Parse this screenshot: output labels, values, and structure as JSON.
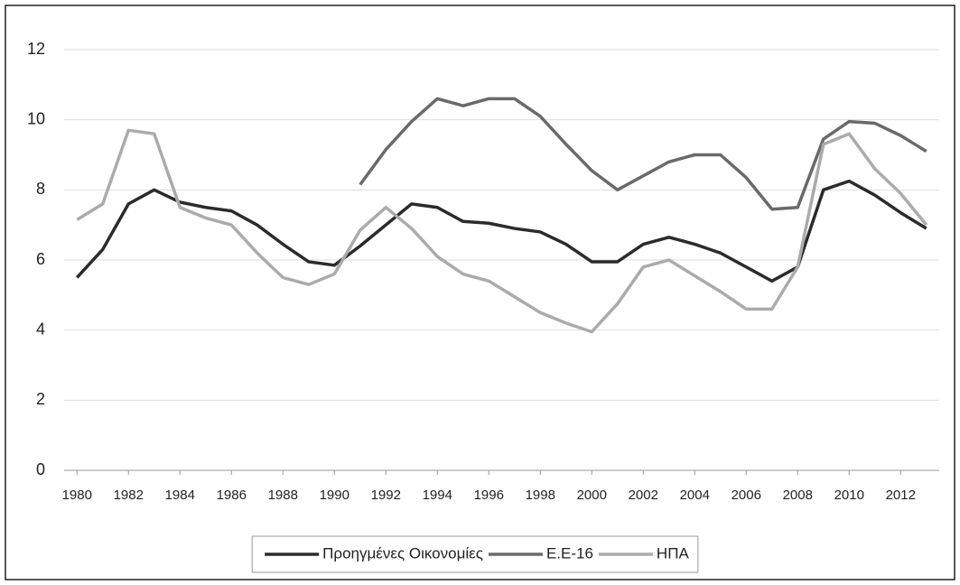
{
  "chart_data": {
    "type": "line",
    "x": [
      1980,
      1981,
      1982,
      1983,
      1984,
      1985,
      1986,
      1987,
      1988,
      1989,
      1990,
      1991,
      1992,
      1993,
      1994,
      1995,
      1996,
      1997,
      1998,
      1999,
      2000,
      2001,
      2002,
      2003,
      2004,
      2005,
      2006,
      2007,
      2008,
      2009,
      2010,
      2011,
      2012,
      2013
    ],
    "series": [
      {
        "name": "Προηγμένες Οικονομίες",
        "color": "#2b2b2b",
        "values": [
          5.5,
          6.3,
          7.6,
          8.0,
          7.65,
          7.5,
          7.4,
          7.0,
          6.45,
          5.95,
          5.85,
          6.4,
          7.0,
          7.6,
          7.5,
          7.1,
          7.05,
          6.9,
          6.8,
          6.45,
          5.95,
          5.95,
          6.45,
          6.65,
          6.45,
          6.2,
          5.8,
          5.4,
          5.8,
          8.0,
          8.25,
          7.85,
          7.35,
          6.9
        ]
      },
      {
        "name": "Ε.Ε-16",
        "color": "#6a6a6a",
        "values": [
          null,
          null,
          null,
          null,
          null,
          null,
          null,
          null,
          null,
          null,
          null,
          8.15,
          9.15,
          9.95,
          10.6,
          10.4,
          10.6,
          10.6,
          10.1,
          9.3,
          8.55,
          8.0,
          8.4,
          8.8,
          9.0,
          9.0,
          8.35,
          7.45,
          7.5,
          9.45,
          9.95,
          9.9,
          9.55,
          9.1
        ]
      },
      {
        "name": "ΗΠΑ",
        "color": "#ababab",
        "values": [
          7.15,
          7.6,
          9.7,
          9.6,
          7.5,
          7.2,
          7.0,
          6.2,
          5.5,
          5.3,
          5.6,
          6.85,
          7.5,
          6.9,
          6.1,
          5.6,
          5.4,
          4.95,
          4.5,
          4.2,
          3.95,
          4.75,
          5.8,
          6.0,
          5.55,
          5.1,
          4.6,
          4.6,
          5.8,
          9.3,
          9.6,
          8.6,
          7.9,
          7.0
        ]
      }
    ],
    "xlim": [
      1979.5,
      2013.5
    ],
    "xticks": [
      1980,
      1982,
      1984,
      1986,
      1988,
      1990,
      1992,
      1994,
      1996,
      1998,
      2000,
      2002,
      2004,
      2006,
      2008,
      2010,
      2012
    ],
    "ylim": [
      0,
      12
    ],
    "yticks": [
      0,
      2,
      4,
      6,
      8,
      10,
      12
    ],
    "grid": true,
    "legend": "bottom"
  }
}
